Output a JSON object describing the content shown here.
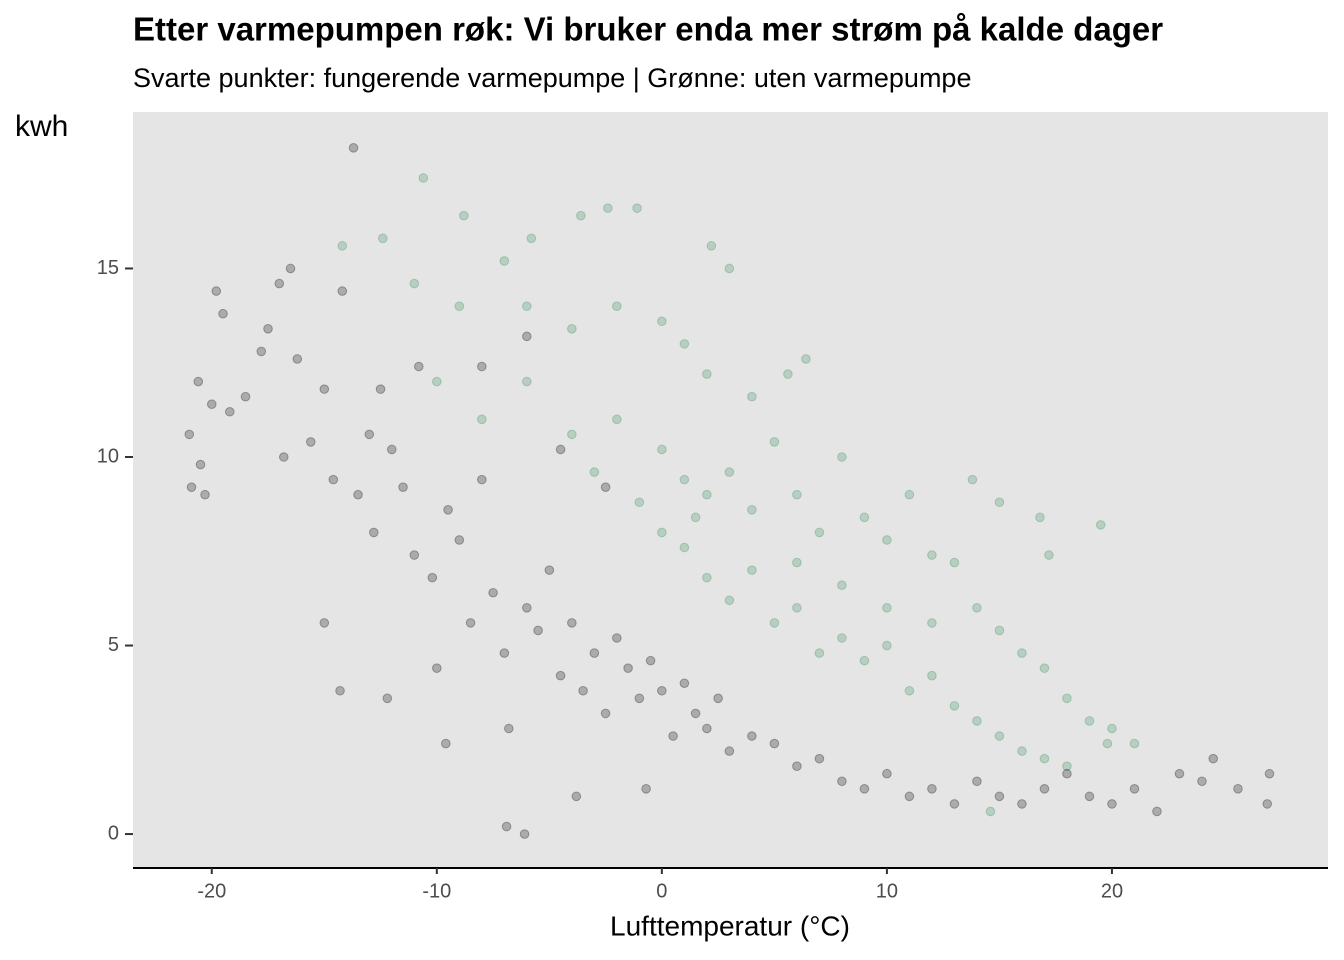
{
  "chart_data": {
    "type": "scatter",
    "title": "Etter varmepumpen røk: Vi bruker enda mer strøm på kalde dager",
    "subtitle": "Svarte punkter: fungerende varmepumpe | Grønne: uten varmepumpe",
    "y_label": "kwh",
    "x_label": "Lufttemperatur (°C)",
    "xlim": [
      -23.5,
      29.6
    ],
    "ylim": [
      -0.9,
      19.15
    ],
    "xticks": [
      -20,
      -10,
      0,
      10,
      20
    ],
    "yticks": [
      0,
      5,
      10,
      15
    ],
    "grid": false,
    "series": [
      {
        "color": "#000000",
        "x": [
          -21,
          -20.9,
          -20.5,
          -20.3,
          -20.6,
          -20,
          -19.8,
          -19.5,
          -19.2,
          -18.5,
          -17.8,
          -17.5,
          -17,
          -16.5,
          -16.2,
          -16.8,
          -15.6,
          -15,
          -14.6,
          -14.2,
          -13.7,
          -13.5,
          -13,
          -12.8,
          -12.5,
          -12,
          -11.5,
          -11,
          -10.8,
          -10.2,
          -10,
          -9.5,
          -9,
          -8.5,
          -8,
          -7.5,
          -7,
          -6.8,
          -6.9,
          -6.1,
          -6,
          -5.5,
          -5,
          -4.5,
          -4,
          -3.5,
          -3,
          -2.5,
          -2,
          -1.5,
          -1,
          -0.5,
          0,
          0.5,
          1,
          1.5,
          2,
          2.5,
          3,
          4,
          5,
          6,
          7,
          8,
          9,
          10,
          11,
          12,
          13,
          14,
          15,
          16,
          17,
          18,
          19,
          20,
          21,
          22,
          23,
          24,
          24.5,
          25.6,
          27,
          26.9,
          -14.3,
          -12.2,
          -15,
          -3.8,
          -0.7,
          -2.5,
          -4.5,
          -8,
          -6,
          -9.6
        ],
        "values": [
          10.6,
          9.2,
          9.8,
          9.0,
          12,
          11.4,
          14.4,
          13.8,
          11.2,
          11.6,
          12.8,
          13.4,
          14.6,
          15,
          12.6,
          10,
          10.4,
          11.8,
          9.4,
          14.4,
          18.2,
          9,
          10.6,
          8,
          11.8,
          10.2,
          9.2,
          7.4,
          12.4,
          6.8,
          4.4,
          8.6,
          7.8,
          5.6,
          9.4,
          6.4,
          4.8,
          2.8,
          0.2,
          0,
          6,
          5.4,
          7,
          4.2,
          5.6,
          3.8,
          4.8,
          3.2,
          5.2,
          4.4,
          3.6,
          4.6,
          3.8,
          2.6,
          4,
          3.2,
          2.8,
          3.6,
          2.2,
          2.6,
          2.4,
          1.8,
          2,
          1.4,
          1.2,
          1.6,
          1,
          1.2,
          0.8,
          1.4,
          1,
          0.8,
          1.2,
          1.6,
          1,
          0.8,
          1.2,
          0.6,
          1.6,
          1.4,
          2,
          1.2,
          1.6,
          0.8,
          3.8,
          3.6,
          5.6,
          1.0,
          1.2,
          9.2,
          10.2,
          12.4,
          13.2,
          2.4
        ]
      },
      {
        "color": "#2e8b57",
        "x": [
          -10.6,
          -8.8,
          -3.6,
          -2.4,
          -1.1,
          2.2,
          3,
          -14.2,
          -12.4,
          -5.8,
          -7,
          -11,
          -9,
          -6,
          -4,
          -2,
          0,
          1,
          2,
          4,
          5.6,
          6.4,
          -10,
          -8,
          -6,
          -4,
          -2,
          0,
          1,
          2,
          3,
          4,
          5,
          6,
          7,
          8,
          9,
          10,
          11,
          12,
          13,
          13.8,
          15,
          16.8,
          17.2,
          19.5,
          14,
          15,
          16,
          17,
          18,
          19,
          20,
          21,
          19.8,
          1,
          2,
          3,
          4,
          5,
          6,
          7,
          8,
          9,
          10,
          11,
          12,
          13,
          14,
          15,
          16,
          17,
          18,
          -1,
          0,
          -3,
          1.5,
          6,
          8,
          10,
          12,
          14.6
        ],
        "values": [
          17.4,
          16.4,
          16.4,
          16.6,
          16.6,
          15.6,
          15,
          15.6,
          15.8,
          15.8,
          15.2,
          14.6,
          14,
          14,
          13.4,
          14,
          13.6,
          13,
          12.2,
          11.6,
          12.2,
          12.6,
          12,
          11,
          12,
          10.6,
          11,
          10.2,
          9.4,
          9,
          9.6,
          8.6,
          10.4,
          9,
          8,
          10,
          8.4,
          7.8,
          9,
          7.4,
          7.2,
          9.4,
          8.8,
          8.4,
          7.4,
          8.2,
          6,
          5.4,
          4.8,
          4.4,
          3.6,
          3,
          2.8,
          2.4,
          2.4,
          7.6,
          6.8,
          6.2,
          7,
          5.6,
          6,
          4.8,
          5.2,
          4.6,
          5,
          3.8,
          4.2,
          3.4,
          3,
          2.6,
          2.2,
          2,
          1.8,
          8.8,
          8,
          9.6,
          8.4,
          7.2,
          6.6,
          6,
          5.6,
          0.6
        ]
      }
    ]
  }
}
